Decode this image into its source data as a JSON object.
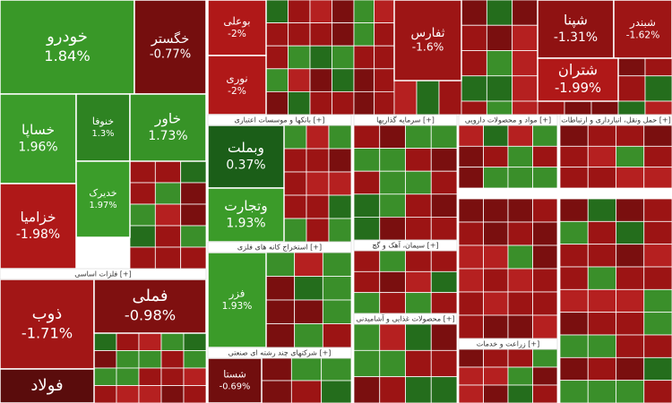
{
  "chart_data": {
    "type": "treemap",
    "categories": [
      "خودرو",
      "خگستر",
      "خساپا",
      "خنوفا",
      "خاور",
      "خدیرک",
      "خزامیا",
      "ذوب",
      "فملی",
      "فولاد",
      "بوعلی",
      "نوری",
      "ثفارس",
      "شپنا",
      "شبندر",
      "شتران",
      "وبملت",
      "وتجارت",
      "فزر",
      "شستا"
    ],
    "values": [
      1.84,
      -0.77,
      1.96,
      1.3,
      1.73,
      1.97,
      -1.98,
      -1.71,
      -0.98,
      null,
      -2,
      -2,
      -1.6,
      -1.31,
      -1.62,
      -1.99,
      0.37,
      1.93,
      1.93,
      -0.69
    ],
    "value_labels": [
      "1.84%",
      "-0.77%",
      "1.96%",
      "1.3%",
      "1.73%",
      "1.97%",
      "-1.98%",
      "-1.71%",
      "-0.98%",
      null,
      "-2%",
      "-2%",
      "-1.6%",
      "-1.31%",
      "-1.62%",
      "-1.99%",
      "0.37%",
      "1.93%",
      "1.93%",
      "-0.69%"
    ],
    "groups": [
      "فلزات اساسی [+]",
      "بانکها و موسسات اعتباری [+]",
      "استخراج کانه های فلزی [+]",
      "شرکتهای چند رشته ای صنعتی [+]",
      "سرمایه گذاریها [+]",
      "مواد و محصولات دارویی [+]",
      "حمل ونقل، انبارداری و ارتباطات [+]",
      "سیمان، آهک و گچ [+]",
      "محصولات غذایی و آشامیدنی [+]",
      "زراعت و خدمات [+]"
    ],
    "positive_color": "#3c9e2a",
    "negative_color": "#b01818"
  }
}
